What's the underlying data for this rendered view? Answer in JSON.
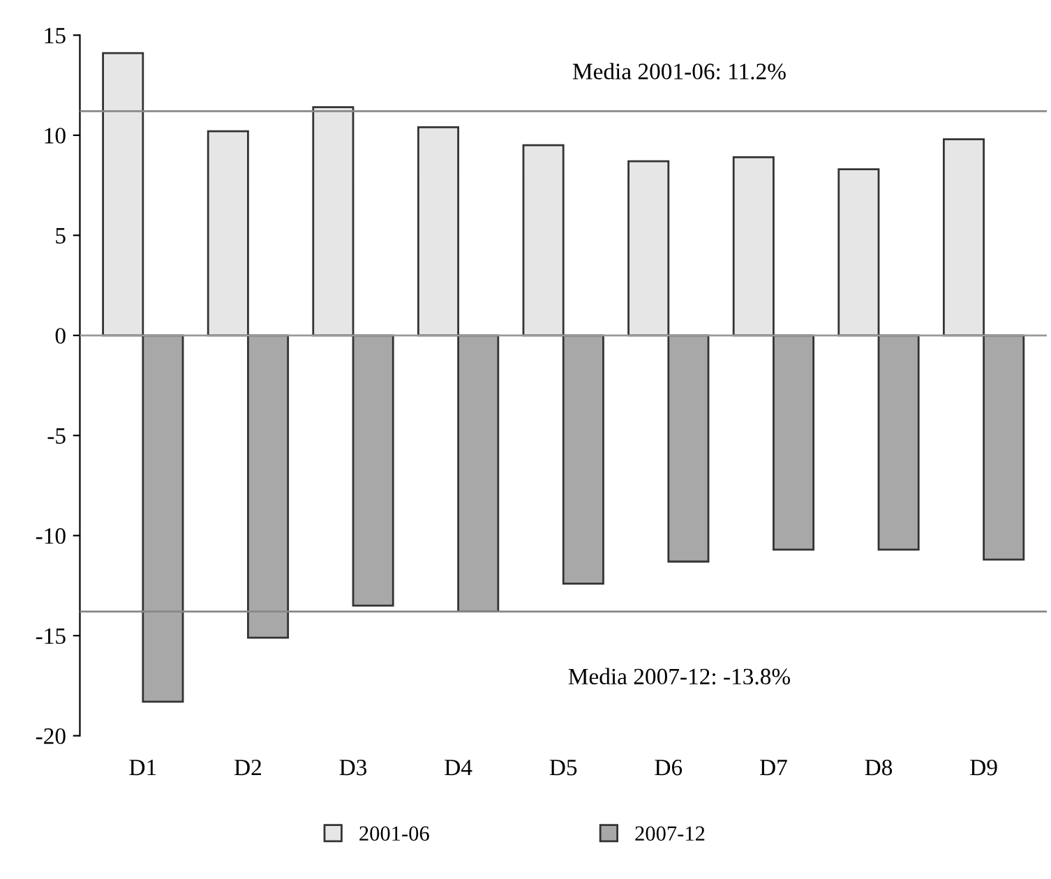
{
  "chart_data": {
    "type": "bar",
    "categories": [
      "D1",
      "D2",
      "D3",
      "D4",
      "D5",
      "D6",
      "D7",
      "D8",
      "D9"
    ],
    "series": [
      {
        "name": "2001-06",
        "color": "#e6e6e6",
        "values": [
          14.1,
          10.2,
          11.4,
          10.4,
          9.5,
          8.7,
          8.9,
          8.3,
          9.8
        ]
      },
      {
        "name": "2007-12",
        "color": "#a8a8a8",
        "values": [
          -18.3,
          -15.1,
          -13.5,
          -13.8,
          -12.4,
          -11.3,
          -10.7,
          -10.7,
          -11.2
        ]
      }
    ],
    "ylim": [
      -20,
      15
    ],
    "yticks": [
      -20,
      -15,
      -10,
      -5,
      0,
      5,
      10,
      15
    ],
    "grid": false,
    "legend": "bottom",
    "ref_lines": [
      {
        "axis": "y",
        "value": 0,
        "color": "#999999"
      },
      {
        "axis": "y",
        "value": 11.2,
        "label": "Media 2001-06: 11.2%",
        "color": "#888888"
      },
      {
        "axis": "y",
        "value": -13.8,
        "label": "Media 2007-12: -13.8%",
        "color": "#888888"
      }
    ]
  }
}
